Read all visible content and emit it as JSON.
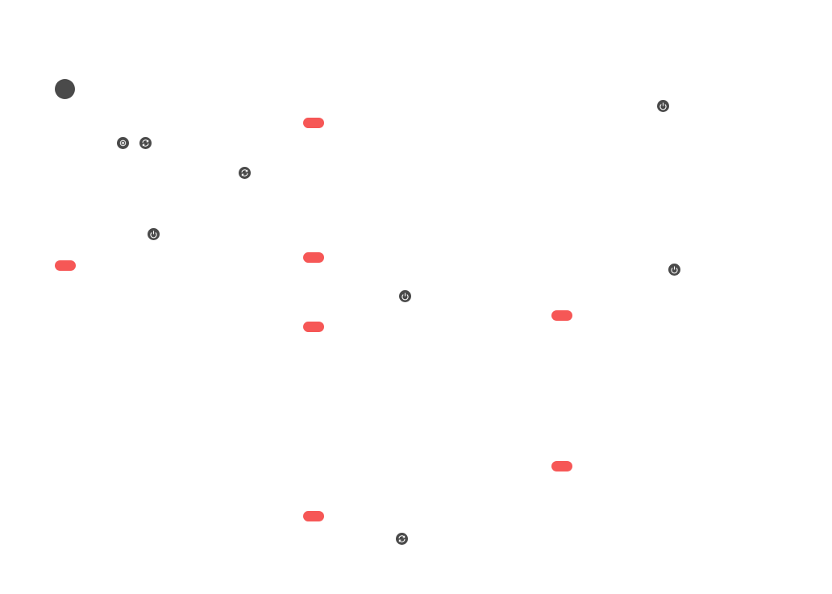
{
  "colors": {
    "icon_bg": "#4a4a4a",
    "badge": "#f65756",
    "background": "#ffffff"
  },
  "icons": [
    {
      "name": "settings-icon"
    },
    {
      "name": "sync-icon"
    },
    {
      "name": "sync-icon"
    },
    {
      "name": "power-icon"
    },
    {
      "name": "power-icon"
    },
    {
      "name": "power-icon"
    },
    {
      "name": "power-icon"
    },
    {
      "name": "sync-icon"
    }
  ],
  "badges": 7
}
